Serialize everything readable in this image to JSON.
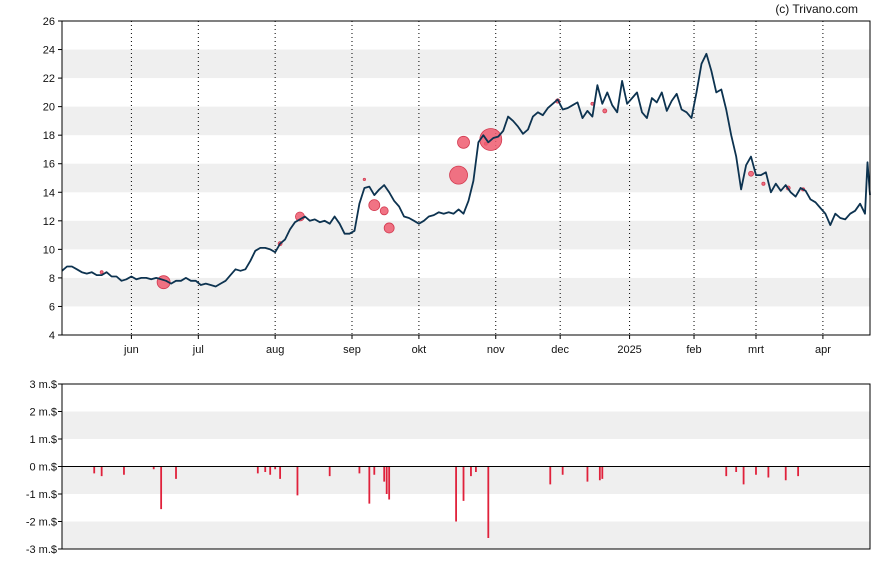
{
  "credit": "(c) Trivano.com",
  "colors": {
    "line": "#0d3350",
    "bubble_fill": "#ef5a6f",
    "bubble_stroke": "#d23a50",
    "bar": "#e0213b",
    "band": "#efefef",
    "axis": "#000000",
    "vgrid": "#000000"
  },
  "chart_data": [
    {
      "type": "line",
      "ylim": [
        4,
        26
      ],
      "yticks": [
        4,
        6,
        8,
        10,
        12,
        14,
        16,
        18,
        20,
        22,
        24,
        26
      ],
      "grid": "alternating horizontal bands, dotted vertical month lines",
      "x_range_days": [
        0,
        326
      ],
      "months": [
        {
          "label": "jun",
          "day": 28
        },
        {
          "label": "jul",
          "day": 55
        },
        {
          "label": "aug",
          "day": 86
        },
        {
          "label": "sep",
          "day": 117
        },
        {
          "label": "okt",
          "day": 144
        },
        {
          "label": "nov",
          "day": 175
        },
        {
          "label": "dec",
          "day": 201
        },
        {
          "label": "2025",
          "day": 229
        },
        {
          "label": "feb",
          "day": 255
        },
        {
          "label": "mrt",
          "day": 280
        },
        {
          "label": "apr",
          "day": 307
        }
      ],
      "series": [
        {
          "points": [
            [
              0,
              8.5
            ],
            [
              2,
              8.8
            ],
            [
              4,
              8.8
            ],
            [
              6,
              8.6
            ],
            [
              8,
              8.4
            ],
            [
              10,
              8.3
            ],
            [
              12,
              8.4
            ],
            [
              14,
              8.2
            ],
            [
              16,
              8.2
            ],
            [
              18,
              8.4
            ],
            [
              20,
              8.1
            ],
            [
              22,
              8.1
            ],
            [
              24,
              7.8
            ],
            [
              26,
              7.9
            ],
            [
              28,
              8.1
            ],
            [
              30,
              7.9
            ],
            [
              32,
              8.0
            ],
            [
              34,
              8.0
            ],
            [
              36,
              7.9
            ],
            [
              38,
              8.0
            ],
            [
              40,
              7.9
            ],
            [
              42,
              7.8
            ],
            [
              44,
              7.6
            ],
            [
              46,
              7.8
            ],
            [
              48,
              7.8
            ],
            [
              50,
              8.0
            ],
            [
              52,
              7.8
            ],
            [
              54,
              7.8
            ],
            [
              56,
              7.5
            ],
            [
              58,
              7.6
            ],
            [
              60,
              7.5
            ],
            [
              62,
              7.4
            ],
            [
              64,
              7.6
            ],
            [
              66,
              7.8
            ],
            [
              68,
              8.2
            ],
            [
              70,
              8.6
            ],
            [
              72,
              8.5
            ],
            [
              74,
              8.6
            ],
            [
              76,
              9.2
            ],
            [
              78,
              9.9
            ],
            [
              80,
              10.1
            ],
            [
              82,
              10.1
            ],
            [
              84,
              10.0
            ],
            [
              86,
              9.8
            ],
            [
              88,
              10.4
            ],
            [
              90,
              10.7
            ],
            [
              92,
              11.4
            ],
            [
              94,
              11.9
            ],
            [
              96,
              12.1
            ],
            [
              98,
              12.3
            ],
            [
              100,
              12.0
            ],
            [
              102,
              12.1
            ],
            [
              104,
              11.9
            ],
            [
              106,
              12.0
            ],
            [
              108,
              11.8
            ],
            [
              110,
              12.3
            ],
            [
              112,
              11.8
            ],
            [
              114,
              11.1
            ],
            [
              116,
              11.1
            ],
            [
              118,
              11.3
            ],
            [
              120,
              13.2
            ],
            [
              122,
              14.3
            ],
            [
              124,
              14.4
            ],
            [
              126,
              13.8
            ],
            [
              128,
              14.2
            ],
            [
              130,
              14.5
            ],
            [
              132,
              14.0
            ],
            [
              134,
              13.4
            ],
            [
              136,
              13.0
            ],
            [
              138,
              12.3
            ],
            [
              140,
              12.2
            ],
            [
              142,
              12.0
            ],
            [
              144,
              11.8
            ],
            [
              146,
              12.0
            ],
            [
              148,
              12.3
            ],
            [
              150,
              12.4
            ],
            [
              152,
              12.6
            ],
            [
              154,
              12.5
            ],
            [
              156,
              12.6
            ],
            [
              158,
              12.5
            ],
            [
              160,
              12.8
            ],
            [
              162,
              12.5
            ],
            [
              164,
              13.4
            ],
            [
              166,
              14.8
            ],
            [
              168,
              17.5
            ],
            [
              170,
              18.0
            ],
            [
              172,
              17.5
            ],
            [
              174,
              17.8
            ],
            [
              176,
              17.9
            ],
            [
              178,
              18.3
            ],
            [
              180,
              19.3
            ],
            [
              182,
              19.0
            ],
            [
              184,
              18.6
            ],
            [
              186,
              18.1
            ],
            [
              188,
              18.4
            ],
            [
              190,
              19.3
            ],
            [
              192,
              19.6
            ],
            [
              194,
              19.4
            ],
            [
              196,
              19.9
            ],
            [
              198,
              20.2
            ],
            [
              200,
              20.5
            ],
            [
              202,
              19.8
            ],
            [
              204,
              19.9
            ],
            [
              206,
              20.1
            ],
            [
              208,
              20.3
            ],
            [
              210,
              19.2
            ],
            [
              212,
              19.7
            ],
            [
              214,
              19.3
            ],
            [
              216,
              21.5
            ],
            [
              218,
              20.2
            ],
            [
              220,
              21.0
            ],
            [
              222,
              20.1
            ],
            [
              224,
              19.6
            ],
            [
              226,
              21.8
            ],
            [
              228,
              20.2
            ],
            [
              230,
              20.6
            ],
            [
              232,
              21.0
            ],
            [
              234,
              19.6
            ],
            [
              236,
              19.2
            ],
            [
              238,
              20.6
            ],
            [
              240,
              20.3
            ],
            [
              242,
              21.0
            ],
            [
              244,
              19.7
            ],
            [
              246,
              20.4
            ],
            [
              248,
              20.9
            ],
            [
              250,
              19.8
            ],
            [
              252,
              19.6
            ],
            [
              254,
              19.2
            ],
            [
              256,
              21.0
            ],
            [
              258,
              23.0
            ],
            [
              260,
              23.7
            ],
            [
              262,
              22.5
            ],
            [
              264,
              21.0
            ],
            [
              266,
              21.2
            ],
            [
              268,
              19.8
            ],
            [
              270,
              18.0
            ],
            [
              272,
              16.5
            ],
            [
              274,
              14.2
            ],
            [
              276,
              15.9
            ],
            [
              278,
              16.5
            ],
            [
              280,
              15.2
            ],
            [
              282,
              15.2
            ],
            [
              284,
              15.4
            ],
            [
              286,
              14.0
            ],
            [
              288,
              14.6
            ],
            [
              290,
              14.1
            ],
            [
              292,
              14.5
            ],
            [
              294,
              14.0
            ],
            [
              296,
              13.7
            ],
            [
              298,
              14.3
            ],
            [
              300,
              14.1
            ],
            [
              302,
              13.5
            ],
            [
              304,
              13.3
            ],
            [
              306,
              12.9
            ],
            [
              308,
              12.5
            ],
            [
              310,
              11.7
            ],
            [
              312,
              12.5
            ],
            [
              314,
              12.2
            ],
            [
              316,
              12.1
            ],
            [
              318,
              12.5
            ],
            [
              320,
              12.7
            ],
            [
              322,
              13.2
            ],
            [
              324,
              12.5
            ],
            [
              325,
              16.1
            ],
            [
              326,
              13.8
            ]
          ]
        }
      ],
      "bubbles": [
        {
          "day": 16,
          "value": 8.4,
          "size": 1.5
        },
        {
          "day": 41,
          "value": 7.7,
          "size": 6.5
        },
        {
          "day": 88,
          "value": 10.4,
          "size": 2.0
        },
        {
          "day": 96,
          "value": 12.3,
          "size": 4.5
        },
        {
          "day": 122,
          "value": 14.9,
          "size": 1.2
        },
        {
          "day": 126,
          "value": 13.1,
          "size": 5.5
        },
        {
          "day": 130,
          "value": 12.7,
          "size": 4.0
        },
        {
          "day": 132,
          "value": 11.5,
          "size": 5.0
        },
        {
          "day": 160,
          "value": 15.2,
          "size": 9.0
        },
        {
          "day": 162,
          "value": 17.5,
          "size": 6.0
        },
        {
          "day": 171,
          "value": 17.4,
          "size": 1.5
        },
        {
          "day": 173,
          "value": 17.7,
          "size": 11.0
        },
        {
          "day": 200,
          "value": 20.4,
          "size": 2.2
        },
        {
          "day": 214,
          "value": 20.2,
          "size": 1.5
        },
        {
          "day": 219,
          "value": 19.7,
          "size": 2.0
        },
        {
          "day": 278,
          "value": 15.3,
          "size": 2.5
        },
        {
          "day": 283,
          "value": 14.6,
          "size": 1.6
        },
        {
          "day": 293,
          "value": 14.3,
          "size": 2.0
        },
        {
          "day": 299,
          "value": 14.2,
          "size": 1.6
        }
      ]
    },
    {
      "type": "bar",
      "ylim": [
        -3,
        3
      ],
      "yticks": [
        -3,
        -2,
        -1,
        0,
        1,
        2,
        3
      ],
      "ytick_labels": [
        "-3 m.$",
        "-2 m.$",
        "-1 m.$",
        "0 m.$",
        "1 m.$",
        "2 m.$",
        "3 m.$"
      ],
      "bars": [
        {
          "day": 13,
          "value": -0.25
        },
        {
          "day": 16,
          "value": -0.35
        },
        {
          "day": 25,
          "value": -0.3
        },
        {
          "day": 37,
          "value": -0.1
        },
        {
          "day": 40,
          "value": -1.55
        },
        {
          "day": 46,
          "value": -0.45
        },
        {
          "day": 79,
          "value": -0.25
        },
        {
          "day": 82,
          "value": -0.2
        },
        {
          "day": 84,
          "value": -0.3
        },
        {
          "day": 86,
          "value": -0.1
        },
        {
          "day": 88,
          "value": -0.45
        },
        {
          "day": 95,
          "value": -1.05
        },
        {
          "day": 108,
          "value": -0.35
        },
        {
          "day": 120,
          "value": -0.25
        },
        {
          "day": 124,
          "value": -1.35
        },
        {
          "day": 126,
          "value": -0.3
        },
        {
          "day": 130,
          "value": -0.55
        },
        {
          "day": 131,
          "value": -1.0
        },
        {
          "day": 132,
          "value": -1.2
        },
        {
          "day": 159,
          "value": -2.0
        },
        {
          "day": 162,
          "value": -1.25
        },
        {
          "day": 165,
          "value": -0.35
        },
        {
          "day": 167,
          "value": -0.2
        },
        {
          "day": 172,
          "value": -2.6
        },
        {
          "day": 197,
          "value": -0.65
        },
        {
          "day": 202,
          "value": -0.3
        },
        {
          "day": 212,
          "value": -0.55
        },
        {
          "day": 217,
          "value": -0.5
        },
        {
          "day": 218,
          "value": -0.45
        },
        {
          "day": 268,
          "value": -0.35
        },
        {
          "day": 272,
          "value": -0.2
        },
        {
          "day": 275,
          "value": -0.65
        },
        {
          "day": 280,
          "value": -0.3
        },
        {
          "day": 285,
          "value": -0.4
        },
        {
          "day": 292,
          "value": -0.5
        },
        {
          "day": 297,
          "value": -0.35
        }
      ]
    }
  ]
}
